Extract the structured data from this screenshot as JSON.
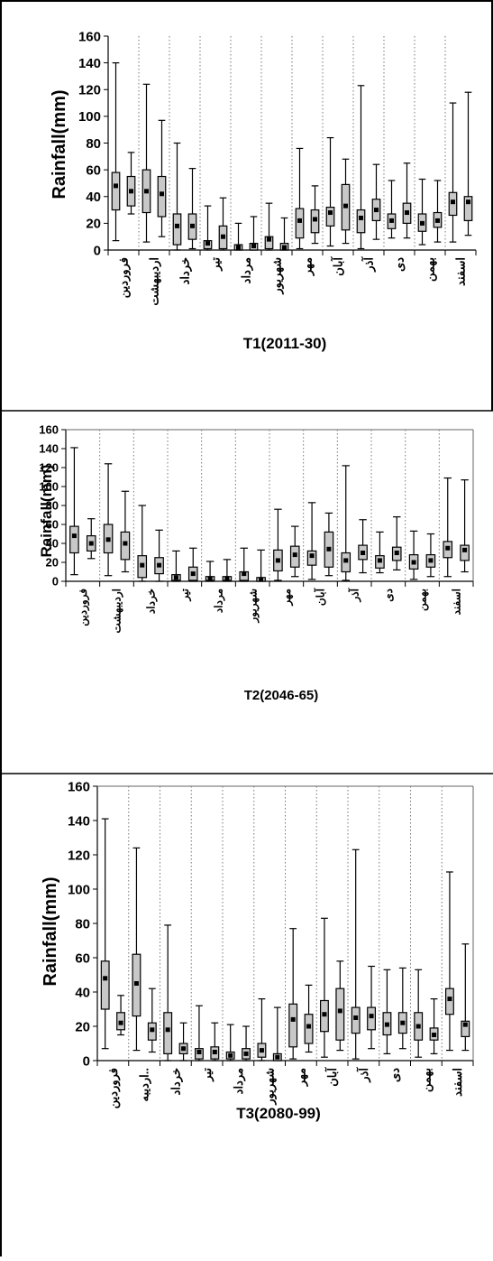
{
  "chart_data": [
    {
      "type": "boxplot",
      "caption": "T1(2011-30)",
      "ylabel": "Rainfall(mm)",
      "ylim": [
        0,
        160
      ],
      "yticks": [
        0,
        20,
        40,
        60,
        80,
        100,
        120,
        140,
        160
      ],
      "categories": [
        "فروردین",
        "اردیبهشت",
        "خرداد",
        "تیر",
        "مرداد",
        "شهریور",
        "مهر",
        "آبان",
        "آذر",
        "دی",
        "بهمن",
        "اسفند"
      ],
      "boxes": [
        {
          "min": 7,
          "q1": 30,
          "median": 48,
          "q3": 58,
          "max": 140
        },
        {
          "min": 27,
          "q1": 33,
          "median": 44,
          "q3": 55,
          "max": 73
        },
        {
          "min": 6,
          "q1": 28,
          "median": 44,
          "q3": 60,
          "max": 124
        },
        {
          "min": 10,
          "q1": 25,
          "median": 42,
          "q3": 55,
          "max": 97
        },
        {
          "min": 0,
          "q1": 4,
          "median": 18,
          "q3": 27,
          "max": 80
        },
        {
          "min": 1,
          "q1": 8,
          "median": 18,
          "q3": 27,
          "max": 61
        },
        {
          "min": 0,
          "q1": 1,
          "median": 5,
          "q3": 7,
          "max": 33
        },
        {
          "min": 0,
          "q1": 1,
          "median": 10,
          "q3": 18,
          "max": 39
        },
        {
          "min": 0,
          "q1": 0,
          "median": 2,
          "q3": 4,
          "max": 20
        },
        {
          "min": 0,
          "q1": 0,
          "median": 3,
          "q3": 5,
          "max": 25
        },
        {
          "min": 0,
          "q1": 1,
          "median": 8,
          "q3": 10,
          "max": 35
        },
        {
          "min": 0,
          "q1": 0,
          "median": 2,
          "q3": 5,
          "max": 24
        },
        {
          "min": 1,
          "q1": 9,
          "median": 22,
          "q3": 31,
          "max": 76
        },
        {
          "min": 5,
          "q1": 13,
          "median": 23,
          "q3": 30,
          "max": 48
        },
        {
          "min": 3,
          "q1": 18,
          "median": 28,
          "q3": 32,
          "max": 84
        },
        {
          "min": 5,
          "q1": 15,
          "median": 33,
          "q3": 49,
          "max": 68
        },
        {
          "min": 1,
          "q1": 13,
          "median": 24,
          "q3": 30,
          "max": 123
        },
        {
          "min": 8,
          "q1": 22,
          "median": 30,
          "q3": 38,
          "max": 64
        },
        {
          "min": 9,
          "q1": 16,
          "median": 22,
          "q3": 27,
          "max": 52
        },
        {
          "min": 9,
          "q1": 20,
          "median": 28,
          "q3": 35,
          "max": 65
        },
        {
          "min": 4,
          "q1": 14,
          "median": 20,
          "q3": 27,
          "max": 53
        },
        {
          "min": 6,
          "q1": 17,
          "median": 22,
          "q3": 28,
          "max": 52
        },
        {
          "min": 6,
          "q1": 26,
          "median": 36,
          "q3": 43,
          "max": 110
        },
        {
          "min": 11,
          "q1": 22,
          "median": 36,
          "q3": 40,
          "max": 118
        }
      ]
    },
    {
      "type": "boxplot",
      "caption": "T2(2046-65)",
      "ylabel": "Rainfall(mm)",
      "ylim": [
        0,
        160
      ],
      "yticks": [
        0,
        20,
        40,
        60,
        80,
        100,
        120,
        140,
        160
      ],
      "categories": [
        "فروردین",
        "اردیبهشت",
        "خرداد",
        "تیر",
        "مرداد",
        "شهریور",
        "مهر",
        "آبان",
        "آذر",
        "دی",
        "بهمن",
        "اسفند"
      ],
      "boxes": [
        {
          "min": 7,
          "q1": 30,
          "median": 48,
          "q3": 58,
          "max": 141
        },
        {
          "min": 24,
          "q1": 32,
          "median": 40,
          "q3": 48,
          "max": 66
        },
        {
          "min": 6,
          "q1": 30,
          "median": 44,
          "q3": 60,
          "max": 124
        },
        {
          "min": 10,
          "q1": 23,
          "median": 40,
          "q3": 52,
          "max": 95
        },
        {
          "min": 0,
          "q1": 4,
          "median": 17,
          "q3": 27,
          "max": 80
        },
        {
          "min": 0,
          "q1": 8,
          "median": 17,
          "q3": 25,
          "max": 54
        },
        {
          "min": 0,
          "q1": 1,
          "median": 4,
          "q3": 7,
          "max": 32
        },
        {
          "min": 0,
          "q1": 1,
          "median": 8,
          "q3": 15,
          "max": 35
        },
        {
          "min": 0,
          "q1": 1,
          "median": 3,
          "q3": 5,
          "max": 21
        },
        {
          "min": 0,
          "q1": 1,
          "median": 3,
          "q3": 5,
          "max": 23
        },
        {
          "min": 0,
          "q1": 1,
          "median": 8,
          "q3": 10,
          "max": 35
        },
        {
          "min": 0,
          "q1": 0,
          "median": 2,
          "q3": 4,
          "max": 33
        },
        {
          "min": 1,
          "q1": 11,
          "median": 22,
          "q3": 33,
          "max": 76
        },
        {
          "min": 5,
          "q1": 15,
          "median": 28,
          "q3": 37,
          "max": 58
        },
        {
          "min": 2,
          "q1": 17,
          "median": 27,
          "q3": 32,
          "max": 83
        },
        {
          "min": 6,
          "q1": 15,
          "median": 34,
          "q3": 52,
          "max": 72
        },
        {
          "min": 1,
          "q1": 10,
          "median": 22,
          "q3": 30,
          "max": 122
        },
        {
          "min": 9,
          "q1": 23,
          "median": 30,
          "q3": 38,
          "max": 65
        },
        {
          "min": 9,
          "q1": 14,
          "median": 22,
          "q3": 27,
          "max": 52
        },
        {
          "min": 12,
          "q1": 22,
          "median": 30,
          "q3": 36,
          "max": 68
        },
        {
          "min": 2,
          "q1": 13,
          "median": 20,
          "q3": 28,
          "max": 53
        },
        {
          "min": 5,
          "q1": 15,
          "median": 22,
          "q3": 28,
          "max": 50
        },
        {
          "min": 5,
          "q1": 25,
          "median": 35,
          "q3": 42,
          "max": 109
        },
        {
          "min": 10,
          "q1": 22,
          "median": 33,
          "q3": 38,
          "max": 107
        }
      ]
    },
    {
      "type": "boxplot",
      "caption": "T3(2080-99)",
      "ylabel": "Rainfall(mm)",
      "ylim": [
        0,
        160
      ],
      "yticks": [
        0,
        20,
        40,
        60,
        80,
        100,
        120,
        140,
        160
      ],
      "categories": [
        "فروردین",
        "اردیبه..",
        "خرداد",
        "تیر",
        "مرداد",
        "شهریور",
        "مهر",
        "آبان",
        "آذر",
        "دی",
        "بهمن",
        "اسفند"
      ],
      "boxes": [
        {
          "min": 7,
          "q1": 30,
          "median": 48,
          "q3": 58,
          "max": 141
        },
        {
          "min": 15,
          "q1": 18,
          "median": 22,
          "q3": 28,
          "max": 38
        },
        {
          "min": 6,
          "q1": 26,
          "median": 45,
          "q3": 62,
          "max": 124
        },
        {
          "min": 5,
          "q1": 12,
          "median": 18,
          "q3": 22,
          "max": 42
        },
        {
          "min": 0,
          "q1": 4,
          "median": 18,
          "q3": 28,
          "max": 79
        },
        {
          "min": 0,
          "q1": 4,
          "median": 7,
          "q3": 10,
          "max": 22
        },
        {
          "min": 0,
          "q1": 1,
          "median": 5,
          "q3": 7,
          "max": 32
        },
        {
          "min": 0,
          "q1": 1,
          "median": 5,
          "q3": 8,
          "max": 22
        },
        {
          "min": 0,
          "q1": 1,
          "median": 3,
          "q3": 5,
          "max": 21
        },
        {
          "min": 0,
          "q1": 1,
          "median": 4,
          "q3": 7,
          "max": 20
        },
        {
          "min": 0,
          "q1": 2,
          "median": 6,
          "q3": 10,
          "max": 36
        },
        {
          "min": 0,
          "q1": 0,
          "median": 2,
          "q3": 4,
          "max": 31
        },
        {
          "min": 1,
          "q1": 8,
          "median": 24,
          "q3": 33,
          "max": 77
        },
        {
          "min": 5,
          "q1": 10,
          "median": 20,
          "q3": 27,
          "max": 44
        },
        {
          "min": 2,
          "q1": 17,
          "median": 27,
          "q3": 35,
          "max": 83
        },
        {
          "min": 6,
          "q1": 12,
          "median": 29,
          "q3": 42,
          "max": 58
        },
        {
          "min": 1,
          "q1": 16,
          "median": 25,
          "q3": 31,
          "max": 123
        },
        {
          "min": 7,
          "q1": 18,
          "median": 26,
          "q3": 31,
          "max": 55
        },
        {
          "min": 4,
          "q1": 15,
          "median": 21,
          "q3": 28,
          "max": 53
        },
        {
          "min": 7,
          "q1": 16,
          "median": 22,
          "q3": 28,
          "max": 54
        },
        {
          "min": 2,
          "q1": 12,
          "median": 20,
          "q3": 28,
          "max": 53
        },
        {
          "min": 4,
          "q1": 12,
          "median": 15,
          "q3": 19,
          "max": 36
        },
        {
          "min": 6,
          "q1": 27,
          "median": 36,
          "q3": 42,
          "max": 110
        },
        {
          "min": 6,
          "q1": 14,
          "median": 21,
          "q3": 23,
          "max": 68
        }
      ]
    }
  ]
}
